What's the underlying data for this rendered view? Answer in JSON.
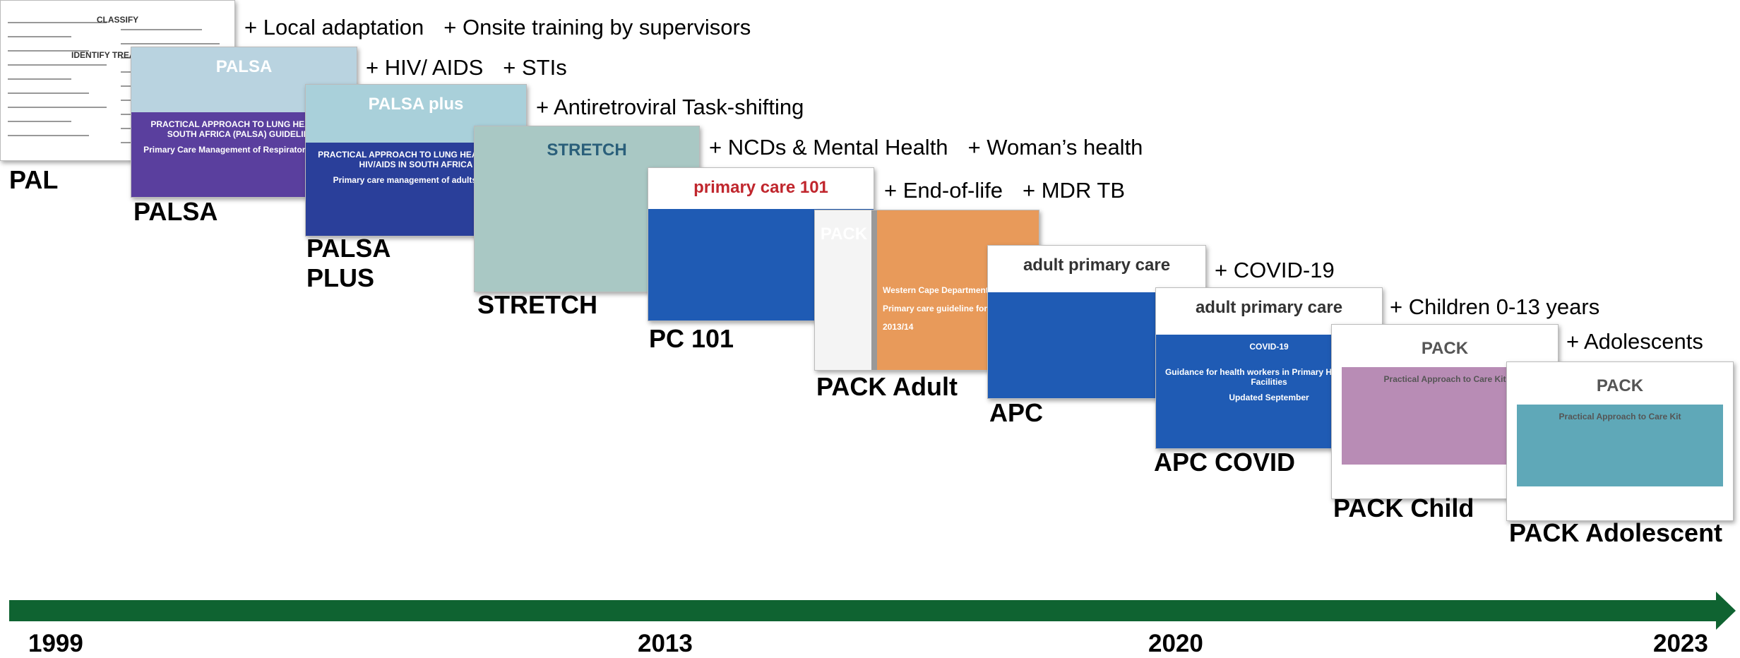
{
  "stages": [
    {
      "name": "PAL",
      "additions": [
        "+ Local adaptation",
        "+ Onsite training by supervisors"
      ],
      "cover": [
        "CLASSIFY",
        "IDENTIFY TREATMENT"
      ]
    },
    {
      "name": "PALSA",
      "additions": [
        "+ HIV/ AIDS",
        "+ STIs"
      ],
      "cover": [
        "PALSA",
        "PRACTICAL APPROACH TO LUNG HEALTH IN SOUTH AFRICA (PALSA) GUIDELINES",
        "Primary Care Management of Respiratory Disease"
      ]
    },
    {
      "name": "PALSA PLUS",
      "additions": [
        "+ Antiretroviral Task-shifting"
      ],
      "cover": [
        "PALSA plus",
        "PRACTICAL APPROACH TO LUNG HEALTH AND HIV/AIDS IN SOUTH AFRICA",
        "Primary care management of adults with:"
      ]
    },
    {
      "name": "STRETCH",
      "additions": [
        "+ NCDs & Mental Health",
        "+ Woman’s health"
      ],
      "cover": [
        "STRETCH"
      ]
    },
    {
      "name": "PC 101",
      "additions": [
        "+ End-of-life",
        "+ MDR TB"
      ],
      "cover": [
        "primary care 101"
      ]
    },
    {
      "name": "PACK Adult",
      "additions": [],
      "cover": [
        "PACK",
        "Western Cape Department of Health",
        "Primary care guideline for adults",
        "2013/14"
      ]
    },
    {
      "name": "APC",
      "additions": [
        "+ COVID-19"
      ],
      "cover": [
        "adult primary care"
      ]
    },
    {
      "name": "APC COVID",
      "additions": [
        "+ Children 0-13 years"
      ],
      "cover": [
        "adult primary care",
        "COVID-19",
        "Guidance for health workers in Primary Health Care Facilities",
        "Updated September"
      ]
    },
    {
      "name": "PACK Child",
      "additions": [
        "+ Adolescents"
      ],
      "cover": [
        "PACK",
        "Practical Approach to Care Kit"
      ]
    },
    {
      "name": "PACK Adolescent",
      "additions": [],
      "cover": [
        "PACK",
        "Practical Approach to Care Kit"
      ]
    }
  ],
  "timeline": [
    "1999",
    "2013",
    "2020",
    "2023"
  ]
}
